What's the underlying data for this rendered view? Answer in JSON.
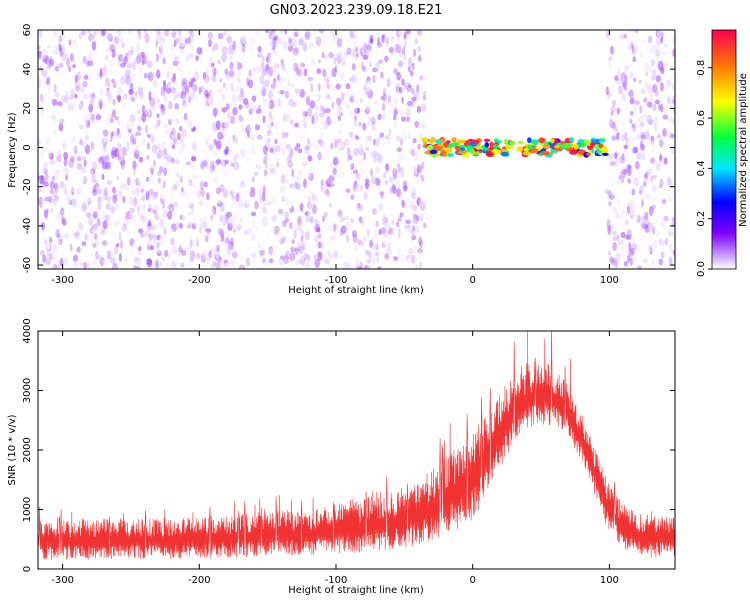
{
  "title": "GN03.2023.239.09.18.E21",
  "chart_data": [
    {
      "type": "heatmap",
      "xlabel": "Height of straight line (km)",
      "ylabel": "Frequency (Hz)",
      "xlim": [
        -318,
        148
      ],
      "ylim": [
        -62,
        60
      ],
      "x_ticks": [
        -300,
        -200,
        -100,
        0,
        100
      ],
      "y_ticks": [
        -60,
        -40,
        -20,
        0,
        20,
        40,
        60
      ],
      "colorbar": {
        "label": "Normalized spectral amplitude",
        "range": [
          0,
          0.95
        ],
        "ticks": [
          0.0,
          0.2,
          0.4,
          0.6,
          0.8
        ],
        "colormap": [
          "#ffffff",
          "#cfa8ff",
          "#8000ff",
          "#0000ff",
          "#00e5ff",
          "#00ff40",
          "#ffff00",
          "#ff8000",
          "#ff0050"
        ]
      },
      "regions": [
        {
          "x_range": [
            -318,
            -35
          ],
          "freq_range": [
            -62,
            60
          ],
          "amplitude": [
            0.0,
            0.12
          ],
          "pattern": "broadband noise"
        },
        {
          "x_range": [
            -35,
            98
          ],
          "freq_range": [
            -4,
            4
          ],
          "amplitude": [
            0.2,
            0.95
          ],
          "pattern": "narrow band near 0 Hz"
        },
        {
          "x_range": [
            98,
            148
          ],
          "freq_range": [
            -62,
            60
          ],
          "amplitude": [
            0.0,
            0.12
          ],
          "pattern": "broadband noise"
        }
      ],
      "grid": false
    },
    {
      "type": "line",
      "xlabel": "Height of straight line (km)",
      "ylabel": "SNR (10 * v/v)",
      "xlim": [
        -318,
        148
      ],
      "ylim": [
        0,
        4000
      ],
      "x_ticks": [
        -300,
        -200,
        -100,
        0,
        100
      ],
      "y_ticks": [
        0,
        1000,
        2000,
        3000,
        4000
      ],
      "color": "#f03232",
      "series": [
        {
          "x": [
            -318,
            -300,
            -280,
            -260,
            -240,
            -220,
            -200,
            -180,
            -160,
            -140,
            -120,
            -100,
            -80,
            -60,
            -40,
            -20,
            0,
            10,
            20,
            30,
            40,
            50,
            60,
            70,
            80,
            90,
            100,
            110,
            120,
            130,
            140,
            148
          ],
          "envelope_low": [
            150,
            150,
            160,
            160,
            170,
            170,
            180,
            190,
            200,
            220,
            230,
            250,
            280,
            320,
            400,
            550,
            800,
            1200,
            1700,
            2100,
            2300,
            2400,
            2400,
            2200,
            1800,
            1200,
            600,
            350,
            250,
            200,
            200,
            200
          ],
          "envelope_high": [
            900,
            850,
            850,
            850,
            850,
            850,
            900,
            900,
            950,
            1000,
            1000,
            1100,
            1200,
            1300,
            1500,
            1900,
            2300,
            2700,
            3000,
            3300,
            3500,
            3500,
            3400,
            3100,
            2600,
            2000,
            1400,
            1100,
            950,
            900,
            900,
            900
          ],
          "peak": [
            40,
            4000
          ]
        }
      ],
      "grid": false
    }
  ]
}
